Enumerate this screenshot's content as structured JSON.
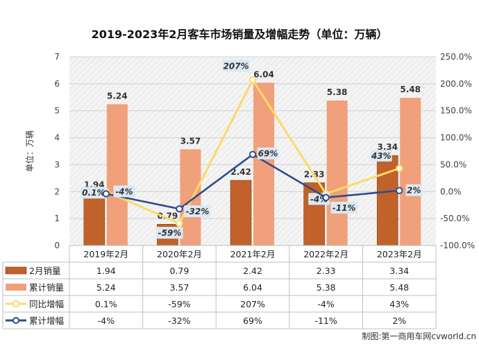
{
  "chart_data": {
    "type": "bar",
    "title": "2019-2023年2月客车市场销量及增幅走势（单位：万辆）",
    "ylabel": "单位：万辆",
    "categories": [
      "2019年2月",
      "2020年2月",
      "2021年2月",
      "2022年2月",
      "2023年2月"
    ],
    "ylim": [
      0,
      7
    ],
    "yticks": [
      "0",
      "1",
      "2",
      "3",
      "4",
      "5",
      "6",
      "7"
    ],
    "y2lim": [
      -100,
      250
    ],
    "y2ticks": [
      "-100.0%",
      "-50.0%",
      "0.0%",
      "50.0%",
      "100.0%",
      "150.0%",
      "200.0%",
      "250.0%"
    ],
    "series": [
      {
        "name": "2月销量",
        "kind": "bar",
        "axis": "left",
        "color": "#C0622A",
        "values": [
          1.94,
          0.79,
          2.42,
          2.33,
          3.34
        ],
        "labels": [
          "1.94",
          "0.79",
          "2.42",
          "2.33",
          "3.34"
        ]
      },
      {
        "name": "累计销量",
        "kind": "bar",
        "axis": "left",
        "color": "#F0A07A",
        "values": [
          5.24,
          3.57,
          6.04,
          5.38,
          5.48
        ],
        "labels": [
          "5.24",
          "3.57",
          "6.04",
          "5.38",
          "5.48"
        ]
      },
      {
        "name": "同比增幅",
        "kind": "line",
        "axis": "right",
        "color": "#FFD966",
        "values": [
          0.1,
          -59,
          207,
          -4,
          43
        ],
        "labels": [
          "0.1%",
          "-59%",
          "207%",
          "-4%",
          "43%"
        ]
      },
      {
        "name": "累计增幅",
        "kind": "line",
        "axis": "right",
        "color": "#2F4B8C",
        "values": [
          -4,
          -32,
          69,
          -11,
          2
        ],
        "labels": [
          "-4%",
          "-32%",
          "69%",
          "-11%",
          "2%"
        ]
      }
    ],
    "grid": true,
    "legend": "data-table"
  },
  "source": "制图:第一商用车网cvworld.cn"
}
